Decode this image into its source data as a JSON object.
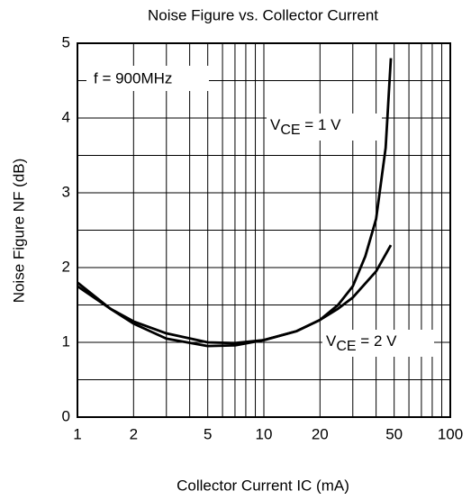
{
  "chart_data": {
    "type": "line",
    "title": "Noise Figure vs. Collector Current",
    "x_label": "Collector Current   IC  (mA)",
    "y_label": "Noise Figure  NF  (dB)",
    "annotation": "f = 900MHz",
    "x_scale": "log",
    "xlim": [
      1,
      100
    ],
    "xticks": [
      1,
      2,
      5,
      10,
      20,
      50,
      100
    ],
    "x_minor_ticks": [
      3,
      4,
      6,
      7,
      8,
      9,
      30,
      40,
      60,
      70,
      80,
      90
    ],
    "ylim": [
      0,
      5
    ],
    "yticks": [
      0,
      1,
      2,
      3,
      4,
      5
    ],
    "y_minor_ticks": [
      0.5,
      1.5,
      2.5,
      3.5,
      4.5
    ],
    "grid": true,
    "series": [
      {
        "label": {
          "main": "V",
          "sub": "CE",
          "rest": " = 1 V"
        },
        "color": "#000000",
        "x": [
          1,
          1.5,
          2,
          3,
          5,
          7,
          10,
          15,
          20,
          25,
          30,
          35,
          40,
          45,
          48
        ],
        "values": [
          1.8,
          1.45,
          1.25,
          1.05,
          0.95,
          0.96,
          1.03,
          1.15,
          1.3,
          1.5,
          1.75,
          2.15,
          2.65,
          3.6,
          4.8
        ]
      },
      {
        "label": {
          "main": "V",
          "sub": "CE",
          "rest": " = 2 V"
        },
        "color": "#000000",
        "x": [
          1,
          1.5,
          2,
          3,
          5,
          7,
          10,
          15,
          20,
          25,
          30,
          40,
          48
        ],
        "values": [
          1.75,
          1.45,
          1.28,
          1.12,
          1.0,
          0.99,
          1.03,
          1.15,
          1.3,
          1.45,
          1.6,
          1.95,
          2.3
        ]
      }
    ]
  }
}
